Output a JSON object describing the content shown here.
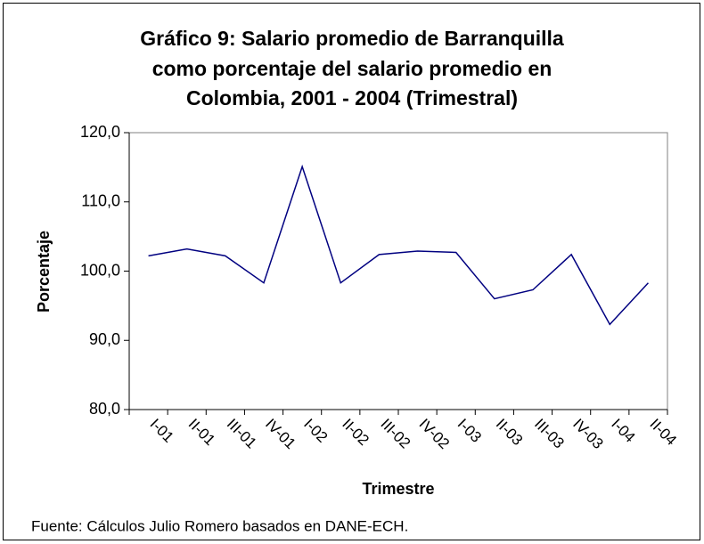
{
  "chart_data": {
    "type": "line",
    "title": [
      "Gráfico 9: Salario promedio de Barranquilla",
      "como porcentaje del salario promedio en",
      "Colombia, 2001 - 2004 (Trimestral)"
    ],
    "x_label": "Trimestre",
    "y_label": "Porcentaje",
    "source": "Fuente: Cálculos Julio Romero basados en DANE-ECH.",
    "categories": [
      "I-01",
      "II-01",
      "III-01",
      "IV-01",
      "I-02",
      "II-02",
      "III-02",
      "IV-02",
      "I-03",
      "II-03",
      "III-03",
      "IV-03",
      "I-04",
      "II-04"
    ],
    "values": [
      102.2,
      103.2,
      102.2,
      98.3,
      115.1,
      98.3,
      102.4,
      102.9,
      102.7,
      96.0,
      97.3,
      102.4,
      92.3,
      98.3
    ],
    "color": "#000080",
    "ylim": [
      80,
      120
    ],
    "yticks": [
      {
        "value": 80,
        "label": "80,0"
      },
      {
        "value": 90,
        "label": "90,0"
      },
      {
        "value": 100,
        "label": "100,0"
      },
      {
        "value": 110,
        "label": "110,0"
      },
      {
        "value": 120,
        "label": "120,0"
      }
    ],
    "grid": false
  }
}
